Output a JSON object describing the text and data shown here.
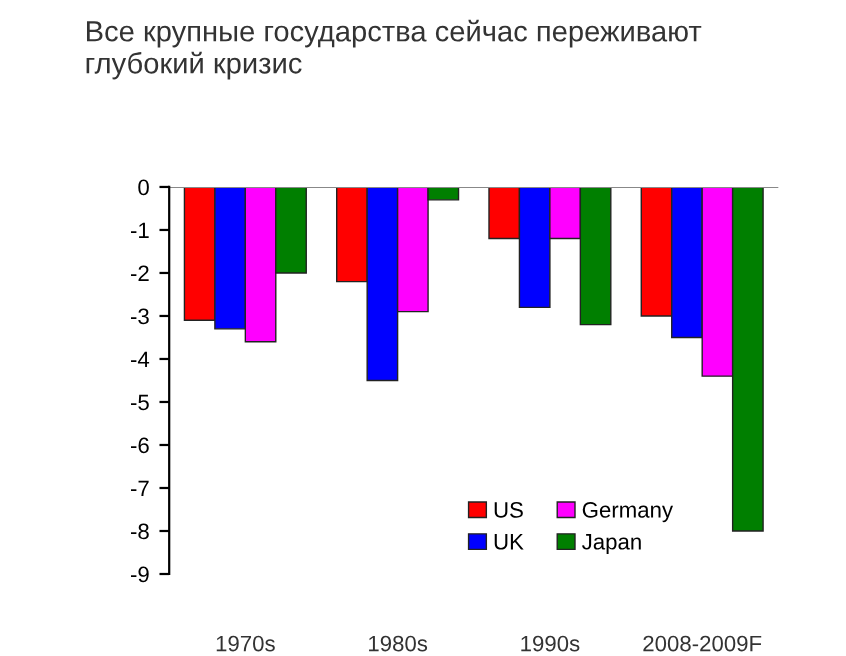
{
  "chart_data": {
    "type": "bar",
    "title": "Все крупные государства сейчас переживают\nглубокий кризис",
    "categories": [
      "1970s",
      "1980s",
      "1990s",
      "2008-2009F"
    ],
    "series": [
      {
        "name": "US",
        "color": "#ff0000",
        "values": [
          -3.1,
          -2.2,
          -1.2,
          -3.0
        ]
      },
      {
        "name": "UK",
        "color": "#0000ff",
        "values": [
          -3.3,
          -4.5,
          -2.8,
          -3.5
        ]
      },
      {
        "name": "Germany",
        "color": "#ff00ff",
        "values": [
          -3.6,
          -2.9,
          -1.2,
          -4.4
        ]
      },
      {
        "name": "Japan",
        "color": "#007f00",
        "values": [
          -2.0,
          -0.3,
          -3.2,
          -8.0
        ]
      }
    ],
    "ylim": [
      -9,
      0
    ],
    "yticks": [
      -9,
      -8,
      -7,
      -6,
      -5,
      -4,
      -3,
      -2,
      -1,
      0
    ],
    "grid": false,
    "legend": "bottom right"
  }
}
